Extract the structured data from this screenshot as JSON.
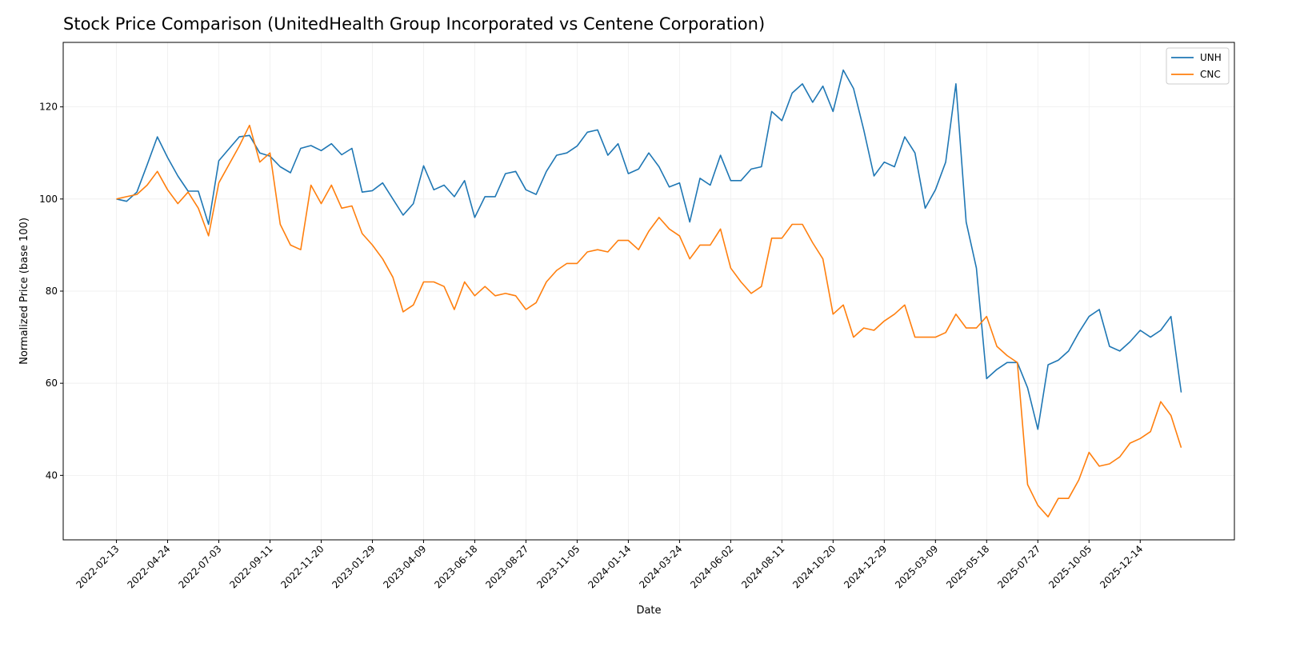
{
  "chart_data": {
    "type": "line",
    "title": "Stock Price Comparison (UnitedHealth Group Incorporated vs Centene Corporation)",
    "xlabel": "Date",
    "ylabel": "Normalized Price (base 100)",
    "ylim": [
      26,
      134
    ],
    "grid": true,
    "legend": "top-right",
    "y_ticks": [
      40,
      60,
      80,
      100,
      120
    ],
    "x_ticks": [
      "2022-02-13",
      "2022-04-24",
      "2022-07-03",
      "2022-09-11",
      "2022-11-20",
      "2023-01-29",
      "2023-04-09",
      "2023-06-18",
      "2023-08-27",
      "2023-11-05",
      "2024-01-14",
      "2024-03-24",
      "2024-06-02",
      "2024-08-11",
      "2024-10-20",
      "2024-12-29",
      "2025-03-09",
      "2025-05-18",
      "2025-07-27",
      "2025-10-05",
      "2025-12-14"
    ],
    "x": [
      "2022-02-13",
      "2022-02-27",
      "2022-03-13",
      "2022-03-27",
      "2022-04-10",
      "2022-04-24",
      "2022-05-08",
      "2022-05-22",
      "2022-06-05",
      "2022-06-19",
      "2022-07-03",
      "2022-07-17",
      "2022-07-31",
      "2022-08-14",
      "2022-08-28",
      "2022-09-11",
      "2022-09-25",
      "2022-10-09",
      "2022-10-23",
      "2022-11-06",
      "2022-11-20",
      "2022-12-04",
      "2022-12-18",
      "2023-01-01",
      "2023-01-15",
      "2023-01-29",
      "2023-02-12",
      "2023-02-26",
      "2023-03-12",
      "2023-03-26",
      "2023-04-09",
      "2023-04-23",
      "2023-05-07",
      "2023-05-21",
      "2023-06-04",
      "2023-06-18",
      "2023-07-02",
      "2023-07-16",
      "2023-07-30",
      "2023-08-13",
      "2023-08-27",
      "2023-09-10",
      "2023-09-24",
      "2023-10-08",
      "2023-10-22",
      "2023-11-05",
      "2023-11-19",
      "2023-12-03",
      "2023-12-17",
      "2023-12-31",
      "2024-01-14",
      "2024-01-28",
      "2024-02-11",
      "2024-02-25",
      "2024-03-10",
      "2024-03-24",
      "2024-04-07",
      "2024-04-21",
      "2024-05-05",
      "2024-05-19",
      "2024-06-02",
      "2024-06-16",
      "2024-06-30",
      "2024-07-14",
      "2024-07-28",
      "2024-08-11",
      "2024-08-25",
      "2024-09-08",
      "2024-09-22",
      "2024-10-06",
      "2024-10-20",
      "2024-11-03",
      "2024-11-17",
      "2024-12-01",
      "2024-12-15",
      "2024-12-29",
      "2025-01-12",
      "2025-01-26",
      "2025-02-09",
      "2025-02-23",
      "2025-03-09",
      "2025-03-23",
      "2025-04-06",
      "2025-04-20",
      "2025-05-04",
      "2025-05-18",
      "2025-06-01",
      "2025-06-15",
      "2025-06-29",
      "2025-07-13",
      "2025-07-27",
      "2025-08-10",
      "2025-08-24",
      "2025-09-07",
      "2025-09-21",
      "2025-10-05",
      "2025-10-19",
      "2025-11-02",
      "2025-11-16",
      "2025-11-30",
      "2025-12-14",
      "2025-12-28",
      "2026-01-11",
      "2026-01-25",
      "2026-02-08"
    ],
    "series": [
      {
        "name": "UNH",
        "color": "#1f77b4",
        "values": [
          100,
          99.5,
          101.5,
          107.4,
          113.5,
          109,
          105,
          101.7,
          101.7,
          94.5,
          108.3,
          110.9,
          113.5,
          113.8,
          110,
          109.3,
          107,
          105.7,
          111,
          111.6,
          110.5,
          112,
          109.6,
          111,
          101.5,
          101.8,
          103.5,
          100,
          96.5,
          99,
          107.2,
          102,
          103,
          100.5,
          104,
          96,
          100.5,
          100.5,
          105.5,
          106,
          102,
          101,
          106,
          109.5,
          110,
          111.5,
          114.5,
          115,
          109.5,
          112,
          105.5,
          106.5,
          110,
          107,
          102.6,
          103.5,
          95,
          104.5,
          103,
          109.5,
          104,
          104,
          106.5,
          107,
          119,
          117,
          123,
          125,
          121,
          124.5,
          119,
          128,
          124,
          115,
          105,
          108,
          107,
          113.5,
          110,
          98,
          102,
          108,
          125,
          95,
          85,
          61,
          63,
          64.5,
          64.5,
          59,
          50,
          64,
          65,
          67,
          71,
          74.5,
          76,
          68,
          67,
          69,
          71.5,
          70,
          71.5,
          74.5,
          58
        ]
      },
      {
        "name": "CNC",
        "color": "#ff7f0e",
        "values": [
          100,
          100.5,
          101,
          103,
          106,
          102,
          99,
          101.5,
          98,
          92,
          103.5,
          107.5,
          111.5,
          116,
          108,
          110,
          94.5,
          90,
          89,
          103,
          99,
          103,
          98,
          98.5,
          92.5,
          90,
          87,
          83,
          75.5,
          77,
          82,
          82,
          81,
          76,
          82,
          79,
          81,
          79,
          79.5,
          79,
          76,
          77.5,
          82,
          84.5,
          86,
          86,
          88.5,
          89,
          88.5,
          91,
          91,
          89,
          93,
          96,
          93.5,
          92,
          87,
          90,
          90,
          93.5,
          85,
          82,
          79.5,
          81,
          91.5,
          91.5,
          94.5,
          94.5,
          90.5,
          87,
          75,
          77,
          70,
          72,
          71.5,
          73.5,
          75,
          77,
          70,
          70,
          70,
          71,
          75,
          72,
          72,
          74.5,
          68,
          66,
          64.5,
          38,
          33.5,
          31,
          35,
          35,
          39,
          45,
          42,
          42.5,
          44,
          47,
          48,
          49.5,
          56,
          53,
          46
        ]
      }
    ]
  }
}
